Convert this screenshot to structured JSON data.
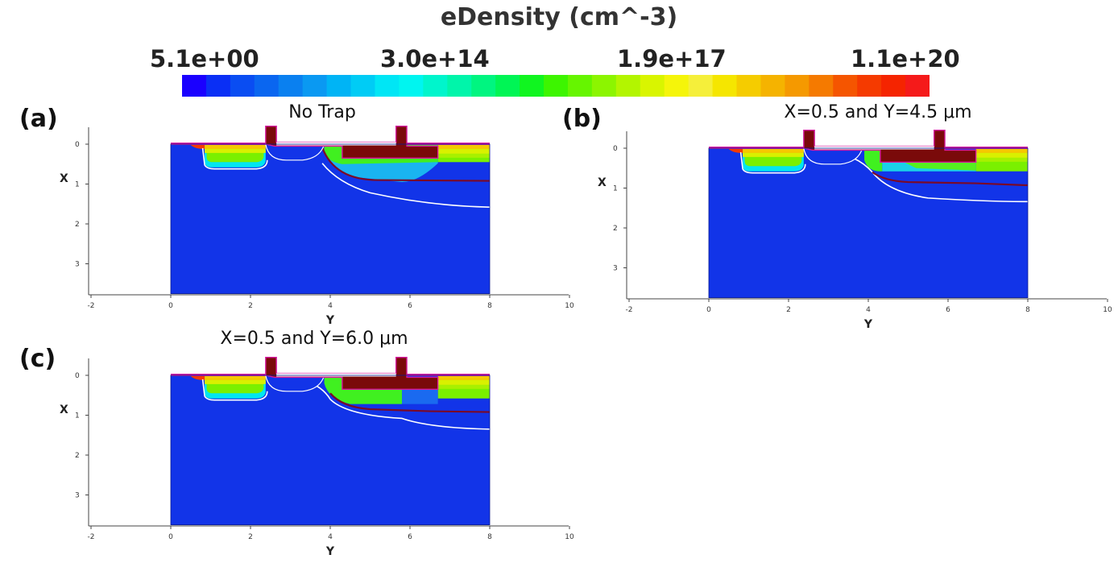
{
  "colorbar": {
    "title": "eDensity (cm^-3)",
    "labels": [
      "5.1e+00",
      "3.0e+14",
      "1.9e+17",
      "1.1e+20"
    ],
    "colors": [
      "#1a00ff",
      "#0a2ff5",
      "#0a4df2",
      "#0a66f0",
      "#0a80f0",
      "#0a99f2",
      "#00b4f5",
      "#00ccf5",
      "#00e6f5",
      "#00f5f0",
      "#00f5cc",
      "#00f5aa",
      "#00f580",
      "#00f555",
      "#10f520",
      "#3df500",
      "#66f500",
      "#8cf500",
      "#b3f500",
      "#d9f500",
      "#f5f50a",
      "#f5ef3a",
      "#f5e600",
      "#f5cc00",
      "#f5b300",
      "#f59900",
      "#f57a00",
      "#f55500",
      "#f53a00",
      "#f52400",
      "#f51a1a"
    ]
  },
  "panels": [
    {
      "letter": "(a)",
      "title": "No Trap",
      "variant": "a"
    },
    {
      "letter": "(b)",
      "title": "X=0.5 and Y=4.5 μm",
      "variant": "b"
    },
    {
      "letter": "(c)",
      "title": "X=0.5 and Y=6.0 μm",
      "variant": "c"
    }
  ],
  "axes": {
    "xlabel": "Y",
    "ylabel": "X",
    "yticks": [
      "0",
      "1",
      "2",
      "3"
    ],
    "xticks": [
      "-2",
      "0",
      "2",
      "4",
      "6",
      "8",
      "10"
    ]
  },
  "colors": {
    "bulk": "#1234e8",
    "gate": "#7a0a0a",
    "oxide": "#d61aa0",
    "junction": "#ffffff",
    "contour": "#7a0a28"
  }
}
